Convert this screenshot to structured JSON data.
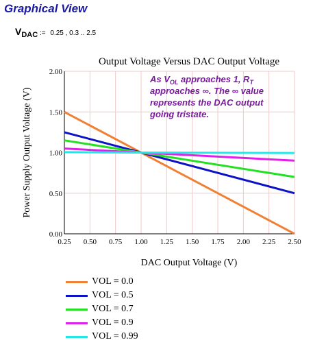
{
  "heading": "Graphical View",
  "definition": {
    "var_main": "V",
    "var_sub": "DAC",
    "operator": ":=",
    "expr": "0.25 , 0.3 ..  2.5"
  },
  "annotation": {
    "p1": "As V",
    "s1": "OL",
    "p2": " approaches 1, R",
    "s2": "T",
    "p3": " approaches ∞. The ∞ value represents the DAC output going tristate."
  },
  "legend": [
    {
      "label": "VOL = 0.0",
      "color": "#f08035"
    },
    {
      "label": "VOL = 0.5",
      "color": "#0c12c6"
    },
    {
      "label": "VOL = 0.7",
      "color": "#22e022"
    },
    {
      "label": "VOL = 0.9",
      "color": "#e020e8"
    },
    {
      "label": "VOL = 0.99",
      "color": "#22e8e8"
    }
  ],
  "chart_data": {
    "type": "line",
    "title": "Output Voltage Versus DAC Output Voltage",
    "xlabel": "DAC Output Voltage (V)",
    "ylabel": "Power Supply Output Voltage (V)",
    "xlim": [
      0.25,
      2.5
    ],
    "ylim": [
      0,
      2
    ],
    "x_ticks": [
      "0.25",
      "0.50",
      "0.75",
      "1.00",
      "1.25",
      "1.50",
      "1.75",
      "2.00",
      "2.25",
      "2.50"
    ],
    "y_ticks": [
      "0.00",
      "0.50",
      "1.00",
      "1.50",
      "2.00"
    ],
    "grid": true,
    "grid_color": "#f0c8c8",
    "series": [
      {
        "name": "VOL = 0.0",
        "color": "#f08035",
        "points": [
          [
            0.25,
            1.5
          ],
          [
            2.5,
            0.0
          ]
        ]
      },
      {
        "name": "VOL = 0.5",
        "color": "#0c12c6",
        "points": [
          [
            0.25,
            1.25
          ],
          [
            1.0,
            1.0
          ],
          [
            2.5,
            0.5
          ]
        ]
      },
      {
        "name": "VOL = 0.7",
        "color": "#22e022",
        "points": [
          [
            0.25,
            1.15
          ],
          [
            1.0,
            1.0
          ],
          [
            2.5,
            0.7
          ]
        ]
      },
      {
        "name": "VOL = 0.9",
        "color": "#e020e8",
        "points": [
          [
            0.25,
            1.05
          ],
          [
            1.0,
            1.0
          ],
          [
            2.5,
            0.9
          ]
        ]
      },
      {
        "name": "VOL = 0.99",
        "color": "#22e8e8",
        "points": [
          [
            0.25,
            1.005
          ],
          [
            1.0,
            1.0
          ],
          [
            2.5,
            0.995
          ]
        ]
      }
    ]
  }
}
